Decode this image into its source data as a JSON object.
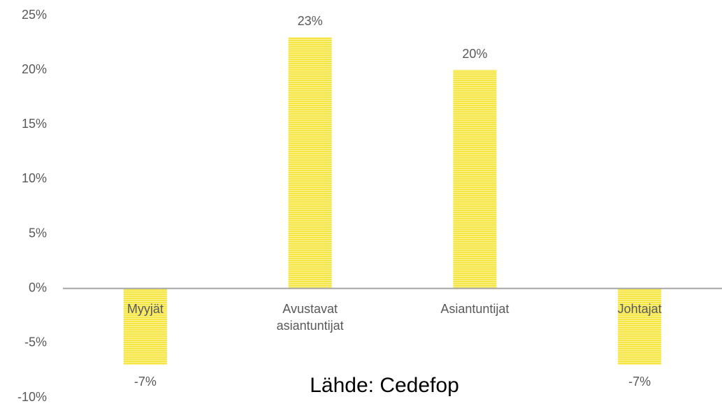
{
  "chart_data": {
    "type": "bar",
    "categories": [
      "Myyjät",
      "Avustavat asiantuntijat",
      "Asiantuntijat",
      "Johtajat"
    ],
    "values": [
      -7,
      23,
      20,
      -7
    ],
    "value_labels": [
      "-7%",
      "23%",
      "20%",
      "-7%"
    ],
    "color": "#f5e642",
    "ylim": [
      -10,
      25
    ],
    "yticks": [
      {
        "value": -10,
        "label": "-10%"
      },
      {
        "value": -5,
        "label": "-5%"
      },
      {
        "value": 0,
        "label": "0%"
      },
      {
        "value": 5,
        "label": "5%"
      },
      {
        "value": 10,
        "label": "10%"
      },
      {
        "value": 15,
        "label": "15%"
      },
      {
        "value": 20,
        "label": "20%"
      },
      {
        "value": 25,
        "label": "25%"
      }
    ],
    "annotation": "Lähde: Cedefop"
  }
}
